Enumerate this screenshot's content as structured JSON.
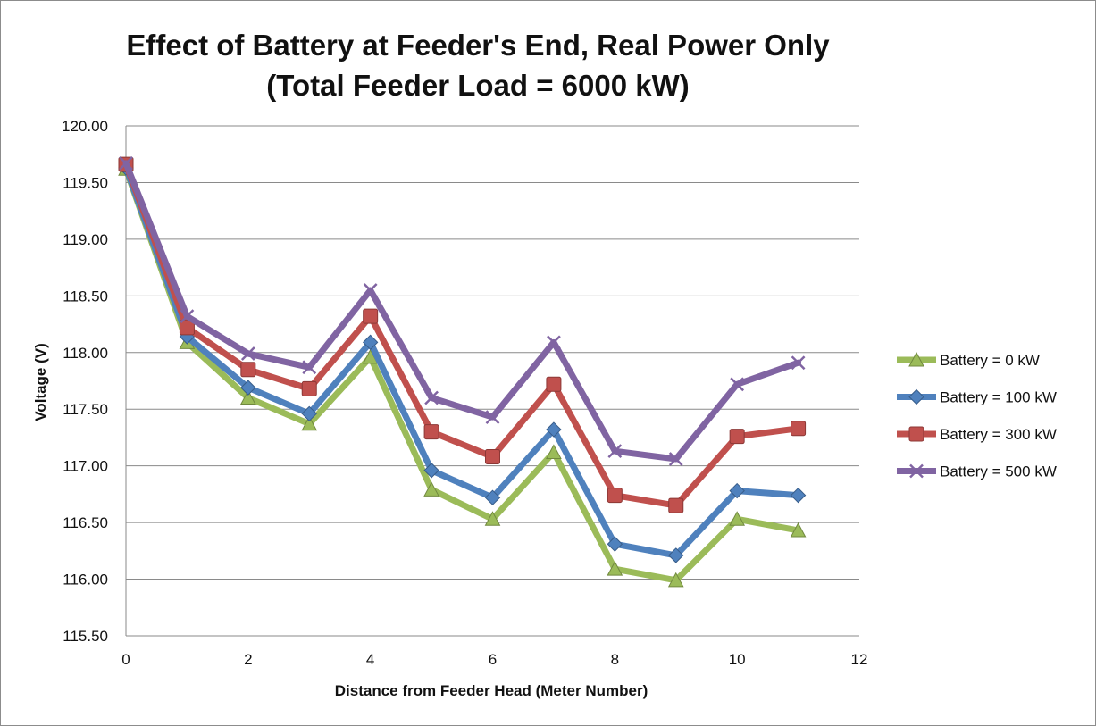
{
  "chart_data": {
    "type": "line",
    "title_line1": "Effect of Battery at Feeder's End, Real Power Only",
    "title_line2": "(Total Feeder Load = 6000 kW)",
    "xlabel": "Distance from Feeder Head (Meter Number)",
    "ylabel": "Voltage (V)",
    "xlim": [
      0,
      12
    ],
    "ylim": [
      115.5,
      120.0
    ],
    "x_ticks": [
      "0",
      "2",
      "4",
      "6",
      "8",
      "10",
      "12"
    ],
    "y_ticks": [
      "115.50",
      "116.00",
      "116.50",
      "117.00",
      "117.50",
      "118.00",
      "118.50",
      "119.00",
      "119.50",
      "120.00"
    ],
    "grid": "horizontal",
    "legend_position": "right",
    "x": [
      0,
      1,
      2,
      3,
      4,
      5,
      6,
      7,
      8,
      9,
      10,
      11
    ],
    "series": [
      {
        "name": "Battery = 0 kW",
        "color": "#9bbb59",
        "marker": "triangle",
        "values": [
          119.62,
          118.09,
          117.6,
          117.37,
          117.96,
          116.79,
          116.53,
          117.12,
          116.09,
          115.99,
          116.53,
          116.43
        ]
      },
      {
        "name": "Battery = 100 kW",
        "color": "#4f81bd",
        "marker": "diamond",
        "values": [
          119.63,
          118.14,
          117.69,
          117.46,
          118.09,
          116.96,
          116.72,
          117.32,
          116.31,
          116.21,
          116.78,
          116.74
        ]
      },
      {
        "name": "Battery = 300 kW",
        "color": "#c0504d",
        "marker": "square",
        "values": [
          119.66,
          118.22,
          117.85,
          117.68,
          118.32,
          117.3,
          117.08,
          117.72,
          116.74,
          116.65,
          117.26,
          117.33
        ]
      },
      {
        "name": "Battery = 500 kW",
        "color": "#8064a2",
        "marker": "x",
        "values": [
          119.67,
          118.32,
          117.99,
          117.87,
          118.55,
          117.6,
          117.43,
          118.09,
          117.13,
          117.06,
          117.72,
          117.91
        ]
      }
    ]
  }
}
